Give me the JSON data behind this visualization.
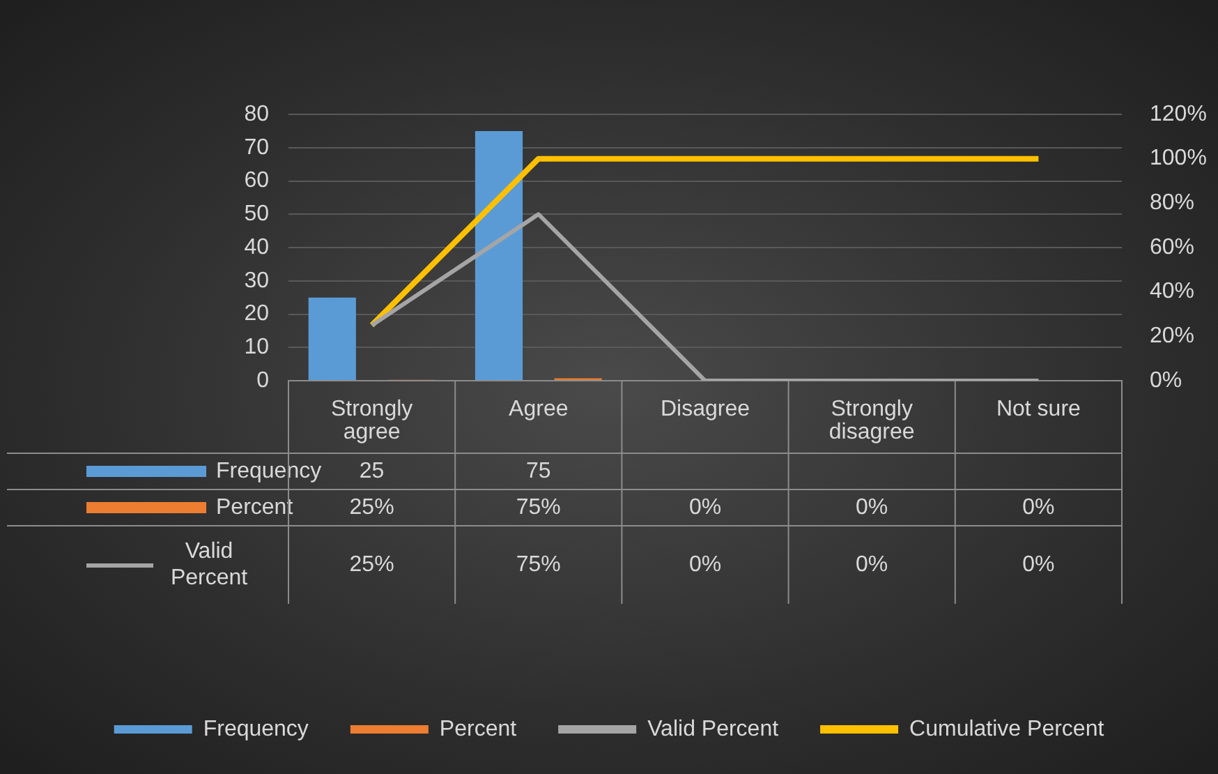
{
  "chart_data": {
    "type": "bar",
    "categories": [
      "Strongly agree",
      "Agree",
      "Disagree",
      "Strongly disagree",
      "Not sure"
    ],
    "series": [
      {
        "name": "Frequency",
        "color": "#5b9bd5",
        "values": [
          25,
          75,
          null,
          null,
          null
        ],
        "value_labels": [
          "25",
          "75",
          null,
          null,
          null
        ]
      },
      {
        "name": "Percent",
        "color": "#ed7d31",
        "values": [
          0.25,
          0.75,
          0,
          0,
          0
        ],
        "value_labels": [
          "25%",
          "75%",
          "0%",
          "0%",
          "0%"
        ]
      },
      {
        "name": "Valid Percent",
        "type": "line",
        "axis": "y2",
        "color": "#a5a5a5",
        "values": [
          25,
          75,
          0,
          0,
          0
        ],
        "value_labels": [
          "25%",
          "75%",
          "0%",
          "0%",
          "0%"
        ]
      },
      {
        "name": "Cumulative Percent",
        "type": "line",
        "axis": "y2",
        "color": "#ffc000",
        "values": [
          25,
          100,
          100,
          100,
          100
        ]
      }
    ],
    "ylim": [
      0,
      80
    ],
    "yticks": [
      0,
      10,
      20,
      30,
      40,
      50,
      60,
      70,
      80
    ],
    "y2lim": [
      0,
      120
    ],
    "y2ticks": [
      {
        "value": 0,
        "label": "0%"
      },
      {
        "value": 20,
        "label": "20%"
      },
      {
        "value": 40,
        "label": "40%"
      },
      {
        "value": 60,
        "label": "60%"
      },
      {
        "value": 80,
        "label": "80%"
      },
      {
        "value": 100,
        "label": "100%"
      },
      {
        "value": 120,
        "label": "120%"
      }
    ],
    "grid": "y",
    "legend": "bottom"
  }
}
